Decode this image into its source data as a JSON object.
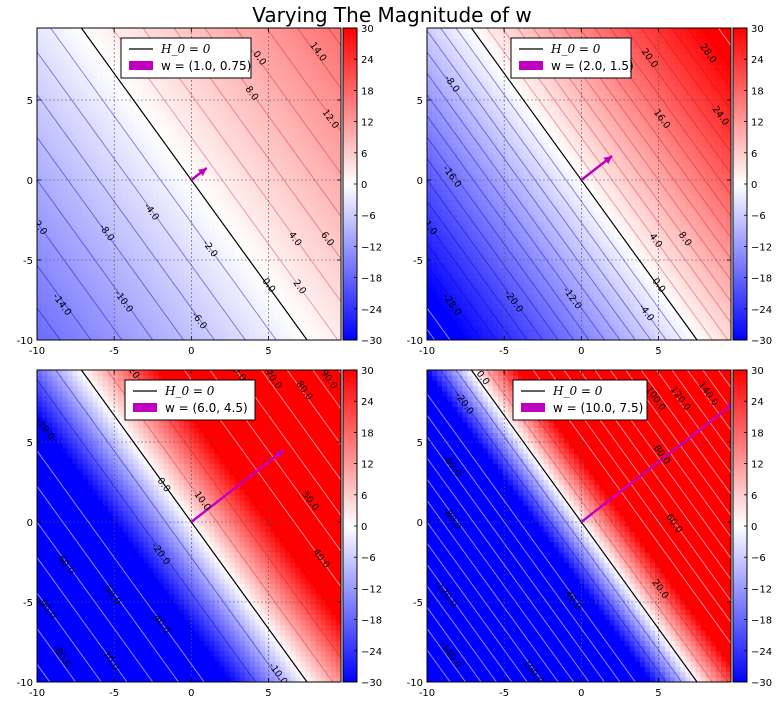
{
  "title": "Varying The Magnitude of w",
  "chart_data": {
    "type": "heatmap",
    "subplots": [
      {
        "w": [
          1.0,
          0.75
        ],
        "legend": [
          "H_0 = 0",
          "w = (1.0, 0.75)"
        ],
        "contour_labels": [
          {
            "value": "-14.0",
            "x": -8.4,
            "y": -7.8
          },
          {
            "value": "-10.0",
            "x": -4.4,
            "y": -7.6
          },
          {
            "value": "-8.0",
            "x": -5.5,
            "y": -3.3
          },
          {
            "value": "-6.0",
            "x": 0.5,
            "y": -8.8
          },
          {
            "value": "-4.0",
            "x": -2.6,
            "y": -2.0
          },
          {
            "value": "-2.0",
            "x": 1.2,
            "y": -4.3
          },
          {
            "value": "0.0",
            "x": 5.0,
            "y": -6.6
          },
          {
            "value": "2.0",
            "x": 7.0,
            "y": -6.7
          },
          {
            "value": "2.0",
            "x": -9.8,
            "y": -3.0
          },
          {
            "value": "4.0",
            "x": 6.7,
            "y": -3.7
          },
          {
            "value": "6.0",
            "x": 8.8,
            "y": -3.7
          },
          {
            "value": "8.0",
            "x": 3.9,
            "y": 5.4
          },
          {
            "value": "12.0",
            "x": 9.0,
            "y": 3.8
          },
          {
            "value": "14.0",
            "x": 8.2,
            "y": 8.0
          },
          {
            "value": "0.0",
            "x": 4.4,
            "y": 7.6
          }
        ]
      },
      {
        "w": [
          2.0,
          1.5
        ],
        "legend": [
          "H_0 = 0",
          "w = (2.0, 1.5)"
        ],
        "contour_labels": [
          {
            "value": "-8.0",
            "x": -8.4,
            "y": 6.0
          },
          {
            "value": "-16.0",
            "x": -8.4,
            "y": 0.2
          },
          {
            "value": "1.0",
            "x": -9.8,
            "y": -3.0
          },
          {
            "value": "-28.0",
            "x": -8.4,
            "y": -7.8
          },
          {
            "value": "-20.0",
            "x": -4.4,
            "y": -7.6
          },
          {
            "value": "-12.0",
            "x": -0.6,
            "y": -7.4
          },
          {
            "value": "-4.0",
            "x": 4.2,
            "y": -8.3
          },
          {
            "value": "0.0",
            "x": 5.0,
            "y": -6.6
          },
          {
            "value": "4.0",
            "x": 4.8,
            "y": -3.8
          },
          {
            "value": "8.0",
            "x": 6.7,
            "y": -3.7
          },
          {
            "value": "16.0",
            "x": 5.2,
            "y": 3.8
          },
          {
            "value": "20.0",
            "x": 4.4,
            "y": 7.6
          },
          {
            "value": "28.0",
            "x": 8.2,
            "y": 7.9
          },
          {
            "value": "24.0",
            "x": 9.0,
            "y": 4.0
          }
        ]
      },
      {
        "w": [
          6.0,
          4.5
        ],
        "legend": [
          "H_0 = 0",
          "w = (6.0, 4.5)"
        ],
        "contour_labels": [
          {
            "value": "-90.0",
            "x": -9.4,
            "y": -5.4
          },
          {
            "value": "-80.0",
            "x": -8.4,
            "y": -8.4
          },
          {
            "value": "-60.0",
            "x": -8.2,
            "y": -2.6
          },
          {
            "value": "-70.0",
            "x": -5.3,
            "y": -8.6
          },
          {
            "value": "-50.0",
            "x": -5.2,
            "y": -4.5
          },
          {
            "value": "-40.0",
            "x": -2.0,
            "y": -6.3
          },
          {
            "value": "-20.0",
            "x": -2.0,
            "y": -2.0
          },
          {
            "value": "-10.0",
            "x": 5.6,
            "y": -9.5
          },
          {
            "value": "-10.0",
            "x": -9.5,
            "y": 5.8
          },
          {
            "value": "0.0",
            "x": -1.8,
            "y": 2.3
          },
          {
            "value": "10.0",
            "x": 0.7,
            "y": 1.3
          },
          {
            "value": "-20",
            "x": -3.8,
            "y": 9.4
          },
          {
            "value": "20.0",
            "x": 3.0,
            "y": 9.4
          },
          {
            "value": "70.0",
            "x": 5.3,
            "y": 8.9
          },
          {
            "value": "80.0",
            "x": 7.3,
            "y": 8.2
          },
          {
            "value": "90.0",
            "x": 8.9,
            "y": 8.9
          },
          {
            "value": "50.0",
            "x": 7.7,
            "y": 1.3
          },
          {
            "value": "40.0",
            "x": 8.4,
            "y": -2.3
          }
        ]
      },
      {
        "w": [
          10.0,
          7.5
        ],
        "legend": [
          "H_0 = 0",
          "w = (10.0, 7.5)"
        ],
        "contour_labels": [
          {
            "value": "0.0",
            "x": -6.4,
            "y": 9.0
          },
          {
            "value": "-20.0",
            "x": -7.6,
            "y": 7.4
          },
          {
            "value": "-60.0",
            "x": -8.4,
            "y": 3.5
          },
          {
            "value": "-80.0",
            "x": -8.4,
            "y": 0.2
          },
          {
            "value": "-120.0",
            "x": -8.8,
            "y": -4.5
          },
          {
            "value": "-140.0",
            "x": -8.5,
            "y": -8.3
          },
          {
            "value": "-100.0",
            "x": -3.2,
            "y": -9.3
          },
          {
            "value": "-40.0",
            "x": -0.6,
            "y": -4.8
          },
          {
            "value": "20.0",
            "x": 5.1,
            "y": -4.2
          },
          {
            "value": "60.0",
            "x": 6.0,
            "y": -0.1
          },
          {
            "value": "80.0",
            "x": 5.2,
            "y": 4.2
          },
          {
            "value": "100.0",
            "x": 4.8,
            "y": 7.7
          },
          {
            "value": "120.0",
            "x": 6.4,
            "y": 7.7
          },
          {
            "value": "140.0",
            "x": 8.2,
            "y": 8.0
          }
        ]
      }
    ],
    "x_range": [
      -10,
      10
    ],
    "y_range": [
      -10,
      10
    ],
    "x_ticks": [
      "-10",
      "-5",
      "0",
      "5"
    ],
    "y_ticks": [
      "-10",
      "-5",
      "0",
      "5"
    ],
    "colorbar_range": [
      -30,
      30
    ],
    "colorbar_ticks": [
      "30",
      "24",
      "18",
      "12",
      "6",
      "0",
      "-6",
      "-12",
      "-18",
      "-24",
      "-30"
    ],
    "colormap": [
      "#0000ff",
      "#ffffff",
      "#ff0000"
    ],
    "arrow_color": "#bf00bf",
    "boundary_color": "#000000",
    "grid": true,
    "legend_position": "upper center"
  }
}
